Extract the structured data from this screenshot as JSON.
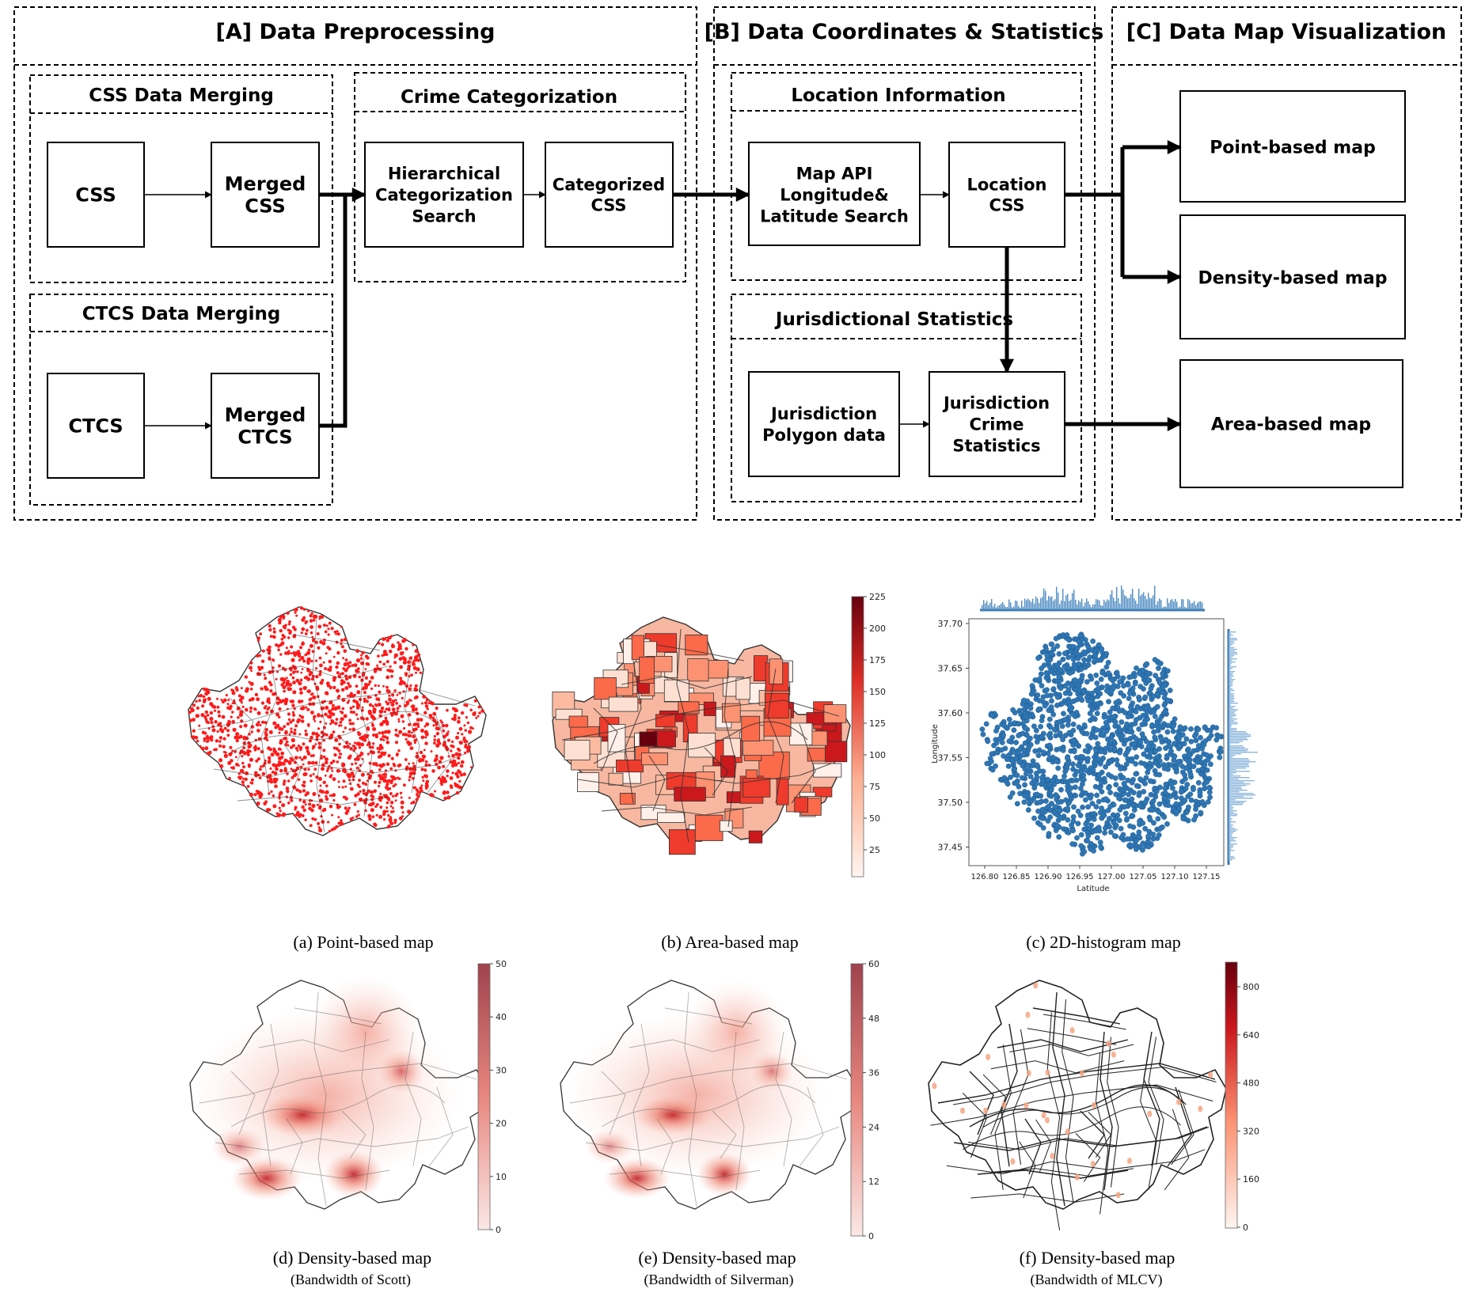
{
  "sections": {
    "a": "[A] Data Preprocessing",
    "b": "[B] Data Coordinates & Statistics",
    "c": "[C] Data Map Visualization"
  },
  "groups": {
    "css_merging": "CSS Data Merging",
    "ctcs_merging": "CTCS Data Merging",
    "crime_categorization": "Crime Categorization",
    "location_information": "Location Information",
    "jurisdictional_statistics": "Jurisdictional Statistics"
  },
  "boxes": {
    "css": [
      "CSS"
    ],
    "merged_css": [
      "Merged",
      "CSS"
    ],
    "ctcs": [
      "CTCS"
    ],
    "merged_ctcs": [
      "Merged",
      "CTCS"
    ],
    "hierarchical_search": [
      "Hierarchical",
      "Categorization",
      "Search"
    ],
    "categorized_css": [
      "Categorized",
      "CSS"
    ],
    "map_api": [
      "Map API",
      "Longitude&",
      "Latitude Search"
    ],
    "location_css": [
      "Location",
      "CSS"
    ],
    "jurisdiction_polygon": [
      "Jurisdiction",
      "Polygon data"
    ],
    "jurisdiction_stats": [
      "Jurisdiction",
      "Crime",
      "Statistics"
    ],
    "point_map": [
      "Point-based map"
    ],
    "density_map": [
      "Density-based map"
    ],
    "area_map": [
      "Area-based map"
    ]
  },
  "panels": {
    "a": {
      "caption": "(a) Point-based map"
    },
    "b": {
      "caption": "(b) Area-based map",
      "colorbar_ticks": [
        "225",
        "200",
        "175",
        "150",
        "125",
        "100",
        "75",
        "50",
        "25"
      ]
    },
    "c": {
      "caption": "(c) 2D-histogram map",
      "ylabel": "Longitude",
      "xlabel": "Latitude",
      "y_ticks": [
        "37.70",
        "37.65",
        "37.60",
        "37.55",
        "37.50",
        "37.45"
      ],
      "x_ticks": [
        "126.80",
        "126.85",
        "126.90",
        "126.95",
        "127.00",
        "127.05",
        "127.10",
        "127.15"
      ]
    },
    "d": {
      "caption": "(d) Density-based map",
      "subcaption": "(Bandwidth of Scott)",
      "colorbar_ticks": [
        "50",
        "40",
        "30",
        "20",
        "10",
        "0"
      ]
    },
    "e": {
      "caption": "(e) Density-based map",
      "subcaption": "(Bandwidth of  Silverman)",
      "colorbar_ticks": [
        "60",
        "48",
        "36",
        "24",
        "12",
        "0"
      ]
    },
    "f": {
      "caption": "(f) Density-based map",
      "subcaption": "(Bandwidth of  MLCV)",
      "colorbar_ticks": [
        "800",
        "640",
        "480",
        "320",
        "160",
        "0"
      ]
    }
  },
  "colors": {
    "line": "#000000",
    "point": "#ff1a1a",
    "scatter": "#2e77b5",
    "dark_red": "#67000d",
    "light": "#fff5f0"
  }
}
